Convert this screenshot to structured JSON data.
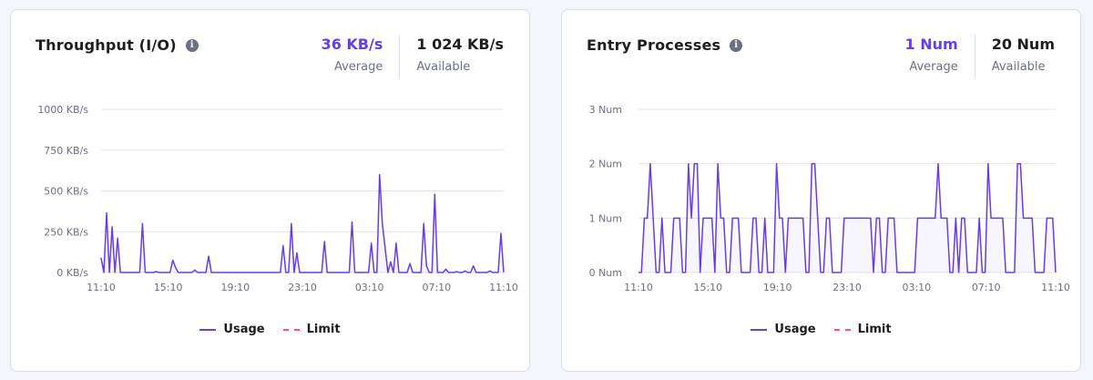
{
  "colors": {
    "accent": "#673de6",
    "usage_line": "#673de6",
    "limit_line": "#fc5185",
    "grid": "#e3e4e8",
    "axis_text": "#6d7081"
  },
  "throughput": {
    "title": "Throughput (I/O)",
    "info_icon": "info-icon",
    "average_value": "36 KB/s",
    "average_label": "Average",
    "available_value": "1 024 KB/s",
    "available_label": "Available",
    "legend": {
      "usage": "Usage",
      "limit": "Limit"
    }
  },
  "entry": {
    "title": "Entry Processes",
    "info_icon": "info-icon",
    "average_value": "1 Num",
    "average_label": "Average",
    "available_value": "20 Num",
    "available_label": "Available",
    "legend": {
      "usage": "Usage",
      "limit": "Limit"
    }
  },
  "chart_data": [
    {
      "type": "area",
      "ylim": [
        0,
        1000
      ],
      "yticks": [
        "0 KB/s",
        "250 KB/s",
        "500 KB/s",
        "750 KB/s",
        "1000 KB/s"
      ],
      "ytick_values": [
        0,
        250,
        500,
        750,
        1000
      ],
      "xticks": [
        "11:10",
        "15:10",
        "19:10",
        "23:10",
        "03:10",
        "07:10",
        "11:10"
      ],
      "grid": true,
      "legend": "bottom-center",
      "series": [
        {
          "name": "Usage",
          "values": [
            90,
            0,
            365,
            0,
            280,
            0,
            210,
            0,
            0,
            0,
            0,
            0,
            0,
            0,
            0,
            300,
            0,
            0,
            0,
            0,
            5,
            0,
            0,
            0,
            0,
            0,
            75,
            30,
            0,
            0,
            0,
            0,
            0,
            0,
            15,
            0,
            0,
            0,
            0,
            100,
            0,
            0,
            0,
            0,
            0,
            0,
            0,
            0,
            0,
            0,
            0,
            0,
            0,
            0,
            0,
            0,
            0,
            0,
            0,
            0,
            0,
            0,
            0,
            0,
            0,
            0,
            165,
            0,
            0,
            300,
            0,
            120,
            0,
            0,
            0,
            0,
            0,
            0,
            0,
            0,
            0,
            190,
            0,
            0,
            0,
            0,
            0,
            0,
            0,
            0,
            0,
            310,
            0,
            0,
            0,
            0,
            0,
            0,
            180,
            0,
            0,
            600,
            300,
            150,
            0,
            65,
            0,
            180,
            0,
            0,
            0,
            0,
            55,
            0,
            0,
            0,
            0,
            300,
            40,
            0,
            0,
            480,
            0,
            0,
            0,
            20,
            0,
            0,
            0,
            5,
            0,
            0,
            10,
            0,
            0,
            40,
            0,
            0,
            0,
            0,
            0,
            10,
            0,
            0,
            0,
            240,
            0
          ]
        },
        {
          "name": "Limit",
          "values": []
        }
      ]
    },
    {
      "type": "area",
      "ylim": [
        0,
        3
      ],
      "yticks": [
        "0 Num",
        "1 Num",
        "2 Num",
        "3 Num"
      ],
      "ytick_values": [
        0,
        1,
        2,
        3
      ],
      "xticks": [
        "11:10",
        "15:10",
        "19:10",
        "23:10",
        "03:10",
        "07:10",
        "11:10"
      ],
      "grid": true,
      "legend": "bottom-center",
      "series": [
        {
          "name": "Usage",
          "values": [
            0,
            0,
            1,
            1,
            2,
            1,
            0,
            0,
            1,
            0,
            0,
            0,
            1,
            1,
            1,
            0,
            0,
            2,
            1,
            2,
            2,
            0,
            1,
            1,
            1,
            1,
            0,
            2,
            1,
            1,
            0,
            0,
            1,
            1,
            1,
            0,
            0,
            0,
            0,
            1,
            1,
            0,
            0,
            1,
            0,
            0,
            0,
            2,
            1,
            1,
            0,
            1,
            1,
            1,
            1,
            1,
            1,
            0,
            0,
            2,
            2,
            1,
            0,
            0,
            1,
            1,
            0,
            0,
            0,
            0,
            1,
            1,
            1,
            1,
            1,
            1,
            1,
            1,
            1,
            1,
            0,
            1,
            1,
            0,
            0,
            1,
            1,
            1,
            0,
            0,
            0,
            0,
            0,
            0,
            0,
            1,
            1,
            1,
            1,
            1,
            1,
            1,
            2,
            1,
            1,
            1,
            0,
            0,
            1,
            0,
            1,
            1,
            0,
            0,
            0,
            0,
            1,
            0,
            0,
            2,
            1,
            1,
            1,
            1,
            1,
            0,
            0,
            0,
            0,
            2,
            2,
            1,
            1,
            1,
            1,
            0,
            0,
            0,
            0,
            1,
            1,
            1,
            0
          ]
        },
        {
          "name": "Limit",
          "values": []
        }
      ]
    }
  ]
}
